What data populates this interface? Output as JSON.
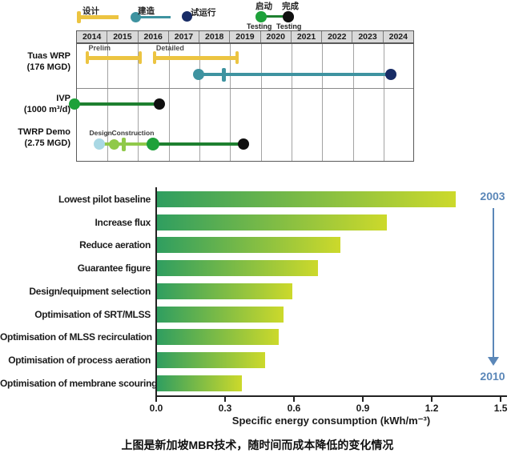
{
  "gantt": {
    "legend": {
      "design": "设计",
      "construction": "建造",
      "commissioning": "试运行",
      "testing_start": "启动",
      "testing_finish": "完成",
      "testing_sub": "Testing"
    },
    "axis_start": 2014,
    "years": [
      "2014",
      "2015",
      "2016",
      "2017",
      "2018",
      "2019",
      "2020",
      "2021",
      "2022",
      "2023",
      "2024"
    ],
    "rows": [
      {
        "name": "Tuas WRP",
        "capacity": "(176 MGD)"
      },
      {
        "name": "IVP",
        "capacity": "(1000 m³/d)"
      },
      {
        "name": "TWRP Demo",
        "capacity": "(2.75 MGD)"
      }
    ],
    "colors": {
      "design": "#ecc441",
      "construction": "#3e93a0",
      "commissioning": "#182c66",
      "testing_start": "#1ea13a",
      "testing_finish": "#101010",
      "testing_line": "#1e8030",
      "design_light": "#a9d8e4",
      "construction_light": "#90c94a"
    },
    "elements": [
      {
        "type": "capped-bar",
        "color": "design",
        "label": "Prelim",
        "y": 72,
        "start": 2014.3,
        "end": 2016.15
      },
      {
        "type": "capped-bar",
        "color": "design",
        "label": "Detailed",
        "y": 72,
        "start": 2016.5,
        "end": 2019.3
      },
      {
        "type": "segment",
        "line": "construction",
        "y": 93,
        "start": 2018.0,
        "end": 2024.25,
        "dots": [
          {
            "at": 2018.0,
            "color": "construction",
            "d": 14
          },
          {
            "at": 2024.25,
            "color": "commissioning",
            "d": 14
          }
        ],
        "ticks": [
          {
            "at": 2018.8,
            "color": "construction"
          }
        ]
      },
      {
        "type": "segment",
        "line": "testing_line",
        "y": 130,
        "start": 2013.95,
        "end": 2016.7,
        "dots": [
          {
            "at": 2013.95,
            "color": "testing_start",
            "d": 14
          },
          {
            "at": 2016.7,
            "color": "testing_finish",
            "d": 14
          }
        ]
      },
      {
        "type": "segment",
        "line": "construction_light",
        "y": 180,
        "start": 2014.75,
        "end": 2016.5,
        "dots": [
          {
            "at": 2014.75,
            "color": "design_light",
            "d": 14
          },
          {
            "at": 2015.25,
            "color": "construction_light",
            "d": 13
          }
        ],
        "ticks": [
          {
            "at": 2015.55,
            "color": "construction_light"
          }
        ],
        "labels": [
          {
            "text": "Design",
            "at": 2014.8,
            "y": 161
          },
          {
            "text": "Construction",
            "at": 2015.85,
            "y": 161
          }
        ]
      },
      {
        "type": "segment",
        "line": "testing_line",
        "y": 180,
        "start": 2016.5,
        "end": 2019.45,
        "dots": [
          {
            "at": 2016.5,
            "color": "testing_start",
            "d": 16
          },
          {
            "at": 2019.45,
            "color": "testing_finish",
            "d": 14
          }
        ]
      }
    ]
  },
  "chart_data": {
    "type": "bar",
    "orientation": "horizontal",
    "categories": [
      "Lowest pilot baseline",
      "Increase flux",
      "Reduce aeration",
      "Guarantee figure",
      "Design/equipment selection",
      "Optimisation of SRT/MLSS",
      "Optimisation of MLSS recirculation",
      "Optimisation of process aeration",
      "Optimisation of membrane scouring"
    ],
    "values": [
      1.3,
      1.0,
      0.8,
      0.7,
      0.59,
      0.55,
      0.53,
      0.47,
      0.37
    ],
    "xlabel": "Specific energy consumption (kWh/m⁻³)",
    "xlim": [
      0,
      1.5
    ],
    "xticks": [
      0.0,
      0.3,
      0.6,
      0.9,
      1.2,
      1.5
    ],
    "year_start": "2003",
    "year_end": "2010",
    "bar_color_start": "#2f9e60",
    "bar_color_end": "#ccd92b",
    "arrow_color": "#5b87b8"
  },
  "caption": "上图是新加坡MBR技术，随时间而成本降低的变化情况"
}
